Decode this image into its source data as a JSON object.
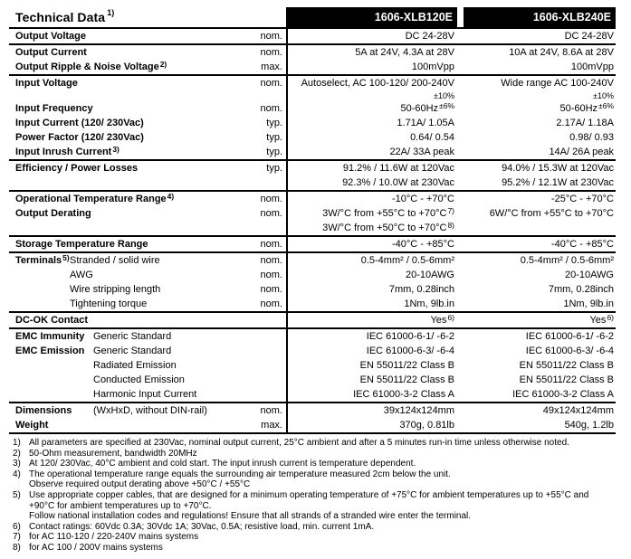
{
  "title": {
    "text": "Technical Data",
    "sup": "1)"
  },
  "columns": [
    {
      "id": "xlb120e",
      "label": "1606-XLB120E"
    },
    {
      "id": "xlb240e",
      "label": "1606-XLB240E"
    }
  ],
  "colors": {
    "header_bg": "#000000",
    "header_fg": "#ffffff",
    "text": "#000000",
    "background": "#ffffff"
  },
  "table": {
    "rows": [
      {
        "label": "Output Voltage",
        "qual": "nom.",
        "c1": [
          {
            "t": "DC 24-28V"
          }
        ],
        "c2": [
          {
            "t": "DC 24-28V"
          }
        ],
        "sep": true
      },
      {
        "label": "Output Current",
        "qual": "nom.",
        "c1": [
          {
            "t": "5A at 24V, 4.3A at 28V"
          }
        ],
        "c2": [
          {
            "t": "10A at 24V, 8.6A at 28V"
          }
        ]
      },
      {
        "label": "Output Ripple & Noise Voltage",
        "sup": "2)",
        "qual": "max.",
        "c1": [
          {
            "t": "100mVpp"
          }
        ],
        "c2": [
          {
            "t": "100mVpp"
          }
        ],
        "sep": true
      },
      {
        "label": "Input Voltage",
        "qual": "nom.",
        "c1": [
          {
            "t": "Autoselect, AC 100-120/ 200-240V"
          },
          {
            "t": "±10%",
            "small": true
          }
        ],
        "c2": [
          {
            "t": "Wide range AC 100-240V"
          },
          {
            "t": "±10%",
            "small": true
          }
        ]
      },
      {
        "label": "Input Frequency",
        "qual": "nom.",
        "c1": [
          {
            "t": "50-60Hz",
            "sup": "±6%"
          }
        ],
        "c2": [
          {
            "t": "50-60Hz",
            "sup": "±6%"
          }
        ]
      },
      {
        "label": "Input Current (120/ 230Vac)",
        "qual": "typ.",
        "c1": [
          {
            "t": "1.71A/ 1.05A"
          }
        ],
        "c2": [
          {
            "t": "2.17A/ 1.18A"
          }
        ]
      },
      {
        "label": "Power Factor (120/ 230Vac)",
        "qual": "typ.",
        "c1": [
          {
            "t": "0.64/ 0.54"
          }
        ],
        "c2": [
          {
            "t": "0.98/ 0.93"
          }
        ]
      },
      {
        "label": "Input Inrush Current",
        "sup": "3)",
        "qual": "typ.",
        "c1": [
          {
            "t": "22A/ 33A peak"
          }
        ],
        "c2": [
          {
            "t": "14A/ 26A peak"
          }
        ],
        "sep": true
      },
      {
        "label": "Efficiency / Power Losses",
        "qual": "typ.",
        "c1": [
          {
            "t": "91.2% / 11.6W at 120Vac"
          },
          {
            "t": "92.3% / 10.0W at 230Vac"
          }
        ],
        "c2": [
          {
            "t": "94.0% / 15.3W at 120Vac"
          },
          {
            "t": "95.2% / 12.1W at 230Vac"
          }
        ],
        "sep": true
      },
      {
        "label": "Operational Temperature Range",
        "sup": "4)",
        "qual": "nom.",
        "c1": [
          {
            "t": "-10°C - +70°C"
          }
        ],
        "c2": [
          {
            "t": "-25°C - +70°C"
          }
        ]
      },
      {
        "label": "Output Derating",
        "qual": "nom.",
        "c1": [
          {
            "t": "3W/°C from +55°C to +70°C",
            "sup": "7)"
          },
          {
            "t": "3W/°C from +50°C to +70°C",
            "sup": "8)"
          }
        ],
        "c2": [
          {
            "t": "6W/°C from +55°C to +70°C"
          }
        ],
        "sep": true
      },
      {
        "label": "Storage Temperature Range",
        "qual": "nom.",
        "c1": [
          {
            "t": "-40°C - +85°C"
          }
        ],
        "c2": [
          {
            "t": "-40°C - +85°C"
          }
        ],
        "sep": true
      },
      {
        "label": "Terminals",
        "sup": "5)",
        "labelw": 60,
        "sub": "Stranded / solid wire",
        "qual": "nom.",
        "c1": [
          {
            "t": "0.5-4mm² / 0.5-6mm²"
          }
        ],
        "c2": [
          {
            "t": "0.5-4mm² / 0.5-6mm²"
          }
        ]
      },
      {
        "label": "",
        "labelw": 60,
        "sub": "AWG",
        "qual": "nom.",
        "c1": [
          {
            "t": "20-10AWG"
          }
        ],
        "c2": [
          {
            "t": "20-10AWG"
          }
        ]
      },
      {
        "label": "",
        "labelw": 60,
        "sub": "Wire stripping length",
        "qual": "nom.",
        "c1": [
          {
            "t": "7mm, 0.28inch"
          }
        ],
        "c2": [
          {
            "t": "7mm, 0.28inch"
          }
        ]
      },
      {
        "label": "",
        "labelw": 60,
        "sub": "Tightening torque",
        "qual": "nom.",
        "c1": [
          {
            "t": "1Nm, 9lb.in"
          }
        ],
        "c2": [
          {
            "t": "1Nm, 9lb.in"
          }
        ],
        "sep": true
      },
      {
        "label": "DC-OK Contact",
        "qual": "",
        "c1": [
          {
            "t": "Yes",
            "sup": "6)"
          }
        ],
        "c2": [
          {
            "t": "Yes",
            "sup": "6)"
          }
        ],
        "sep": true
      },
      {
        "label": "EMC Immunity",
        "labelw": 86,
        "sub": "Generic Standard",
        "c1": [
          {
            "t": "IEC 61000-6-1/ -6-2"
          }
        ],
        "c2": [
          {
            "t": "IEC 61000-6-1/ -6-2"
          }
        ]
      },
      {
        "label": "EMC Emission",
        "labelw": 86,
        "sub": "Generic Standard",
        "c1": [
          {
            "t": "IEC 61000-6-3/ -6-4"
          }
        ],
        "c2": [
          {
            "t": "IEC 61000-6-3/ -6-4"
          }
        ]
      },
      {
        "label": "",
        "labelw": 86,
        "sub": "Radiated Emission",
        "c1": [
          {
            "t": "EN 55011/22 Class B"
          }
        ],
        "c2": [
          {
            "t": "EN 55011/22 Class B"
          }
        ]
      },
      {
        "label": "",
        "labelw": 86,
        "sub": "Conducted Emission",
        "c1": [
          {
            "t": "EN 55011/22 Class B"
          }
        ],
        "c2": [
          {
            "t": "EN 55011/22 Class B"
          }
        ]
      },
      {
        "label": "",
        "labelw": 86,
        "sub": "Harmonic Input Current",
        "c1": [
          {
            "t": "IEC 61000-3-2 Class A"
          }
        ],
        "c2": [
          {
            "t": "IEC 61000-3-2 Class A"
          }
        ],
        "sep": true
      },
      {
        "label": "Dimensions",
        "labelw": 86,
        "sub": "(WxHxD, without DIN-rail)",
        "qual": "nom.",
        "c1": [
          {
            "t": "39x124x124mm"
          }
        ],
        "c2": [
          {
            "t": "49x124x124mm"
          }
        ]
      },
      {
        "label": "Weight",
        "qual": "max.",
        "c1": [
          {
            "t": "370g, 0.81lb"
          }
        ],
        "c2": [
          {
            "t": "540g, 1.2lb"
          }
        ],
        "sep": true
      }
    ]
  },
  "footnotes": [
    {
      "n": "1)",
      "lines": [
        "All parameters are specified at 230Vac, nominal output current, 25°C ambient and after a 5 minutes run-in time unless otherwise noted."
      ]
    },
    {
      "n": "2)",
      "lines": [
        "50-Ohm measurement, bandwidth 20MHz"
      ]
    },
    {
      "n": "3)",
      "lines": [
        "At 120/ 230Vac, 40°C ambient and cold start. The input inrush current is temperature dependent."
      ]
    },
    {
      "n": "4)",
      "lines": [
        "The operational temperature range equals the surrounding air temperature measured 2cm below the unit.",
        "Observe required output derating above +50°C / +55°C"
      ]
    },
    {
      "n": "5)",
      "lines": [
        "Use appropriate copper cables, that are designed for a minimum operating temperature of +75°C for ambient temperatures up to +55°C and",
        "+90°C for ambient temperatures up to +70°C.",
        "Follow national installation codes and regulations! Ensure that all strands of a stranded wire enter the terminal."
      ]
    },
    {
      "n": "6)",
      "lines": [
        "Contact ratings: 60Vdc 0.3A; 30Vdc 1A; 30Vac, 0.5A; resistive load, min. current 1mA."
      ]
    },
    {
      "n": "7)",
      "lines": [
        "for AC 110-120 / 220-240V mains systems"
      ]
    },
    {
      "n": "8)",
      "lines": [
        "for AC 100 / 200V mains systems"
      ]
    }
  ]
}
